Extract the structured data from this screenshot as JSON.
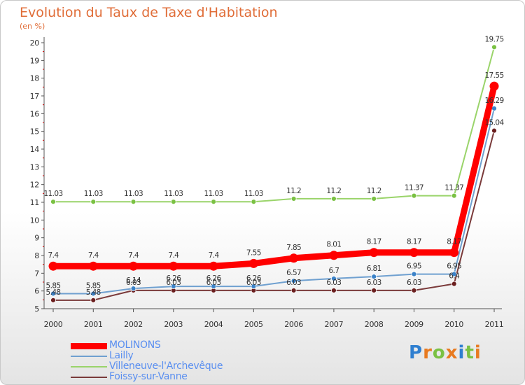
{
  "chart_data": {
    "type": "line",
    "title": "Evolution du Taux de Taxe d'Habitation",
    "ylabel": "(en %)",
    "xlabel": "",
    "ylim": [
      5,
      20
    ],
    "categories": [
      "2000",
      "2001",
      "2002",
      "2003",
      "2004",
      "2005",
      "2006",
      "2007",
      "2008",
      "2009",
      "2010",
      "2011"
    ],
    "series": [
      {
        "name": "MOLINONS",
        "color": "#ff0000",
        "width": 9,
        "label_pos": "above",
        "values": [
          7.4,
          7.4,
          7.4,
          7.4,
          7.4,
          7.55,
          7.85,
          8.01,
          8.17,
          8.17,
          8.17,
          17.55
        ]
      },
      {
        "name": "Lailly",
        "color": "#6fa0d0",
        "marker": "#3b82c8",
        "width": 2,
        "label_pos": "above",
        "values": [
          5.85,
          5.85,
          6.14,
          6.26,
          6.26,
          6.26,
          6.57,
          6.7,
          6.81,
          6.95,
          6.95,
          16.29
        ]
      },
      {
        "name": "Villeneuve-l'Archevêque",
        "color": "#9ad46a",
        "marker": "#7ac143",
        "width": 2,
        "label_pos": "above",
        "values": [
          11.03,
          11.03,
          11.03,
          11.03,
          11.03,
          11.03,
          11.2,
          11.2,
          11.2,
          11.37,
          11.37,
          19.75
        ]
      },
      {
        "name": "Foissy-sur-Vanne",
        "color": "#7a3a3a",
        "marker": "#6b1f1f",
        "width": 2,
        "label_pos": "above",
        "values": [
          5.48,
          5.48,
          6.03,
          6.03,
          6.03,
          6.03,
          6.03,
          6.03,
          6.03,
          6.03,
          6.4,
          15.04
        ]
      }
    ],
    "value_labels": {
      "MOLINONS": [
        "7.4",
        "7.4",
        "7.4",
        "7.4",
        "7.4",
        "7.55",
        "7.85",
        "8.01",
        "8.17",
        "8.17",
        "8.17",
        "17.55"
      ],
      "Lailly": [
        "5.85",
        "5.85",
        "6.14",
        "6.26",
        "6.26",
        "6.26",
        "6.57",
        "6.7",
        "6.81",
        "6.95",
        "6.95",
        "16.29"
      ],
      "Villeneuve-l'Archevêque": [
        "11.03",
        "11.03",
        "11.03",
        "11.03",
        "11.03",
        "11.03",
        "11.2",
        "11.2",
        "11.2",
        "11.37",
        "11.37",
        "19.75"
      ],
      "Foissy-sur-Vanne": [
        "5.48",
        "5.48",
        "6.03",
        "6.03",
        "6.03",
        "6.03",
        "6.03",
        "6.03",
        "6.03",
        "6.03",
        "6.4",
        "15.04"
      ]
    },
    "yticks": [
      5,
      6,
      7,
      8,
      9,
      10,
      11,
      12,
      13,
      14,
      15,
      16,
      17,
      18,
      19,
      20
    ],
    "grid": false,
    "legend_position": "bottom-left"
  },
  "legend": [
    {
      "label": "MOLINONS",
      "color": "#ff0000",
      "thickness": 9
    },
    {
      "label": "Lailly",
      "color": "#6fa0d0",
      "thickness": 2
    },
    {
      "label": "Villeneuve-l'Archevêque",
      "color": "#9ad46a",
      "thickness": 2
    },
    {
      "label": "Foissy-sur-Vanne",
      "color": "#7a3a3a",
      "thickness": 2
    }
  ],
  "logo": {
    "text": "Proxiti",
    "colors": [
      "#2f7fd0",
      "#e87a20",
      "#7ac143",
      "#e87a20",
      "#2f7fd0",
      "#7ac143",
      "#e87a20"
    ]
  }
}
